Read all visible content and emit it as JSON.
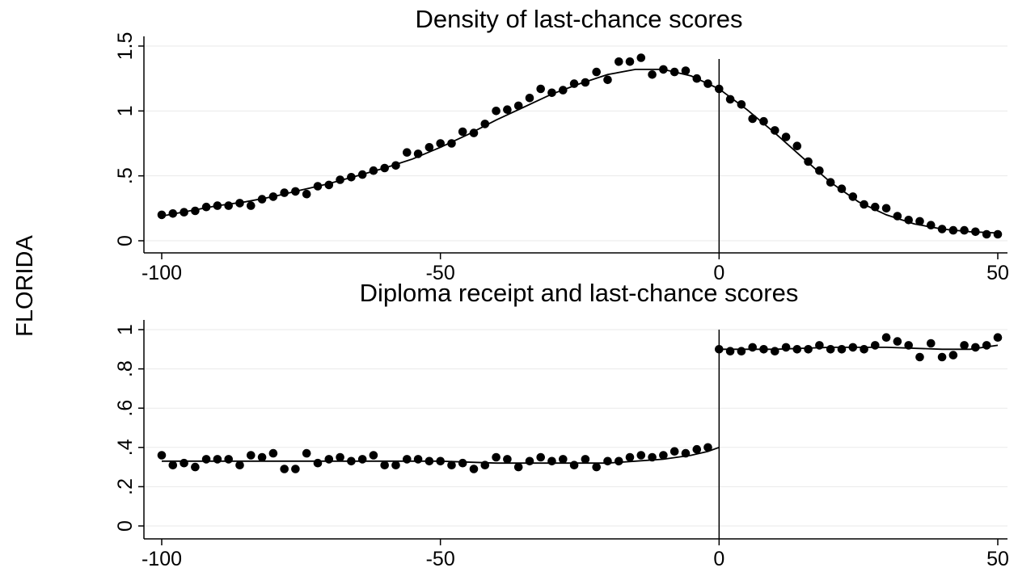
{
  "row_label": "FLORIDA",
  "colors": {
    "points": "#000000",
    "fit_line": "#000000",
    "grid": "#eaeaea",
    "axis": "#000000",
    "background": "#ffffff"
  },
  "chart_data": [
    {
      "type": "scatter",
      "title": "Density of last-chance scores",
      "xlabel": "",
      "ylabel": "",
      "xlim": [
        -100,
        50
      ],
      "ylim": [
        0,
        1.5
      ],
      "x_ticks": [
        -100,
        -50,
        0,
        50
      ],
      "x_tick_labels": [
        "-100",
        "-50",
        "0",
        "50"
      ],
      "y_ticks": [
        0,
        0.5,
        1,
        1.5
      ],
      "y_tick_labels": [
        "0",
        ".5",
        "1",
        "1.5"
      ],
      "cutoff": 0,
      "grid": true,
      "legend": "none",
      "series": [
        {
          "kind": "points",
          "x": [
            -100,
            -98,
            -96,
            -94,
            -92,
            -90,
            -88,
            -86,
            -84,
            -82,
            -80,
            -78,
            -76,
            -74,
            -72,
            -70,
            -68,
            -66,
            -64,
            -62,
            -60,
            -58,
            -56,
            -54,
            -52,
            -50,
            -48,
            -46,
            -44,
            -42,
            -40,
            -38,
            -36,
            -34,
            -32,
            -30,
            -28,
            -26,
            -24,
            -22,
            -20,
            -18,
            -16,
            -14,
            -12,
            -10,
            -8,
            -6,
            -4,
            -2,
            0,
            2,
            4,
            6,
            8,
            10,
            12,
            14,
            16,
            18,
            20,
            22,
            24,
            26,
            28,
            30,
            32,
            34,
            36,
            38,
            40,
            42,
            44,
            46,
            48,
            50
          ],
          "y": [
            0.2,
            0.21,
            0.22,
            0.23,
            0.26,
            0.27,
            0.27,
            0.29,
            0.27,
            0.32,
            0.34,
            0.37,
            0.38,
            0.36,
            0.42,
            0.43,
            0.47,
            0.49,
            0.51,
            0.54,
            0.56,
            0.58,
            0.68,
            0.67,
            0.72,
            0.75,
            0.75,
            0.84,
            0.83,
            0.9,
            1.0,
            1.01,
            1.04,
            1.1,
            1.17,
            1.14,
            1.16,
            1.21,
            1.22,
            1.3,
            1.24,
            1.38,
            1.38,
            1.41,
            1.28,
            1.32,
            1.3,
            1.31,
            1.25,
            1.21,
            1.17,
            1.09,
            1.05,
            0.94,
            0.92,
            0.85,
            0.8,
            0.73,
            0.61,
            0.54,
            0.45,
            0.4,
            0.34,
            0.28,
            0.26,
            0.25,
            0.19,
            0.16,
            0.15,
            0.12,
            0.09,
            0.08,
            0.08,
            0.07,
            0.05,
            0.05
          ]
        },
        {
          "kind": "fit",
          "x": [
            -100,
            -95,
            -90,
            -85,
            -80,
            -75,
            -70,
            -65,
            -60,
            -55,
            -50,
            -45,
            -40,
            -35,
            -30,
            -25,
            -20,
            -15,
            -10,
            -5,
            0,
            5,
            10,
            15,
            20,
            25,
            30,
            35,
            40,
            45,
            50
          ],
          "y": [
            0.19,
            0.23,
            0.27,
            0.3,
            0.34,
            0.39,
            0.44,
            0.5,
            0.56,
            0.63,
            0.72,
            0.82,
            0.93,
            1.03,
            1.13,
            1.21,
            1.28,
            1.32,
            1.32,
            1.27,
            1.17,
            1.01,
            0.83,
            0.64,
            0.45,
            0.3,
            0.2,
            0.13,
            0.09,
            0.07,
            0.06
          ]
        }
      ]
    },
    {
      "type": "scatter",
      "title": "Diploma receipt and last-chance scores",
      "xlabel": "",
      "ylabel": "",
      "xlim": [
        -100,
        50
      ],
      "ylim": [
        0,
        1
      ],
      "x_ticks": [
        -100,
        -50,
        0,
        50
      ],
      "x_tick_labels": [
        "-100",
        "-50",
        "0",
        "50"
      ],
      "y_ticks": [
        0,
        0.2,
        0.4,
        0.6,
        0.8,
        1
      ],
      "y_tick_labels": [
        "0",
        ".2",
        ".4",
        ".6",
        ".8",
        "1"
      ],
      "cutoff": 0,
      "grid": true,
      "legend": "none",
      "series": [
        {
          "kind": "points",
          "x": [
            -100,
            -98,
            -96,
            -94,
            -92,
            -90,
            -88,
            -86,
            -84,
            -82,
            -80,
            -78,
            -76,
            -74,
            -72,
            -70,
            -68,
            -66,
            -64,
            -62,
            -60,
            -58,
            -56,
            -54,
            -52,
            -50,
            -48,
            -46,
            -44,
            -42,
            -40,
            -38,
            -36,
            -34,
            -32,
            -30,
            -28,
            -26,
            -24,
            -22,
            -20,
            -18,
            -16,
            -14,
            -12,
            -10,
            -8,
            -6,
            -4,
            -2,
            0,
            2,
            4,
            6,
            8,
            10,
            12,
            14,
            16,
            18,
            20,
            22,
            24,
            26,
            28,
            30,
            32,
            34,
            36,
            38,
            40,
            42,
            44,
            46,
            48,
            50
          ],
          "y": [
            0.36,
            0.31,
            0.32,
            0.3,
            0.34,
            0.34,
            0.34,
            0.31,
            0.36,
            0.35,
            0.37,
            0.29,
            0.29,
            0.37,
            0.32,
            0.34,
            0.35,
            0.33,
            0.34,
            0.36,
            0.31,
            0.31,
            0.34,
            0.34,
            0.33,
            0.33,
            0.31,
            0.32,
            0.29,
            0.31,
            0.35,
            0.34,
            0.3,
            0.33,
            0.35,
            0.33,
            0.34,
            0.31,
            0.34,
            0.3,
            0.33,
            0.33,
            0.35,
            0.36,
            0.35,
            0.36,
            0.38,
            0.37,
            0.39,
            0.4,
            0.9,
            0.89,
            0.89,
            0.91,
            0.9,
            0.89,
            0.91,
            0.9,
            0.9,
            0.92,
            0.9,
            0.9,
            0.91,
            0.9,
            0.92,
            0.96,
            0.94,
            0.92,
            0.86,
            0.93,
            0.86,
            0.87,
            0.92,
            0.91,
            0.92,
            0.96
          ]
        },
        {
          "kind": "fit",
          "x": [
            -100,
            -90,
            -80,
            -70,
            -60,
            -50,
            -40,
            -30,
            -20,
            -15,
            -10,
            -5,
            -2,
            0
          ],
          "y": [
            0.33,
            0.33,
            0.33,
            0.33,
            0.33,
            0.33,
            0.32,
            0.32,
            0.32,
            0.33,
            0.34,
            0.36,
            0.38,
            0.4
          ]
        },
        {
          "kind": "fit",
          "x": [
            0,
            10,
            20,
            30,
            40,
            45,
            50
          ],
          "y": [
            0.9,
            0.9,
            0.91,
            0.91,
            0.9,
            0.9,
            0.92
          ]
        }
      ]
    }
  ]
}
